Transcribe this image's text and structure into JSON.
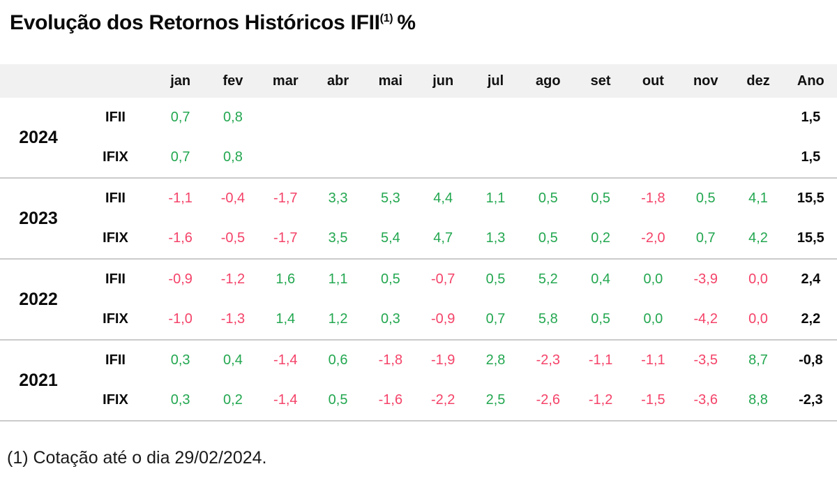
{
  "title": {
    "text": "Evolução dos Retornos Históricos IFII",
    "superscript": "(1)",
    "suffix": "%"
  },
  "footnote": "(1) Cotação até o dia 29/02/2024.",
  "colors": {
    "positive": "#23a750",
    "negative": "#f44369",
    "header_bg": "#f1f1f1",
    "separator": "#cbcbcb",
    "text": "#111111"
  },
  "chart_data": {
    "type": "table",
    "title": "Evolução dos Retornos Históricos IFII(1) %",
    "columns": [
      "jan",
      "fev",
      "mar",
      "abr",
      "mai",
      "jun",
      "jul",
      "ago",
      "set",
      "out",
      "nov",
      "dez",
      "Ano"
    ],
    "year_column_label": "",
    "index_column_label": "",
    "groups": [
      {
        "year": "2024",
        "rows": [
          {
            "index": "IFII",
            "months": [
              "0,7",
              "0,8",
              "",
              "",
              "",
              "",
              "",
              "",
              "",
              "",
              "",
              ""
            ],
            "tones": [
              "g",
              "g",
              "",
              "",
              "",
              "",
              "",
              "",
              "",
              "",
              "",
              ""
            ],
            "total": "1,5"
          },
          {
            "index": "IFIX",
            "months": [
              "0,7",
              "0,8",
              "",
              "",
              "",
              "",
              "",
              "",
              "",
              "",
              "",
              ""
            ],
            "tones": [
              "g",
              "g",
              "",
              "",
              "",
              "",
              "",
              "",
              "",
              "",
              "",
              ""
            ],
            "total": "1,5"
          }
        ]
      },
      {
        "year": "2023",
        "rows": [
          {
            "index": "IFII",
            "months": [
              "-1,1",
              "-0,4",
              "-1,7",
              "3,3",
              "5,3",
              "4,4",
              "1,1",
              "0,5",
              "0,5",
              "-1,8",
              "0,5",
              "4,1"
            ],
            "tones": [
              "r",
              "r",
              "r",
              "g",
              "g",
              "g",
              "g",
              "g",
              "g",
              "r",
              "g",
              "g"
            ],
            "total": "15,5"
          },
          {
            "index": "IFIX",
            "months": [
              "-1,6",
              "-0,5",
              "-1,7",
              "3,5",
              "5,4",
              "4,7",
              "1,3",
              "0,5",
              "0,2",
              "-2,0",
              "0,7",
              "4,2"
            ],
            "tones": [
              "r",
              "r",
              "r",
              "g",
              "g",
              "g",
              "g",
              "g",
              "g",
              "r",
              "g",
              "g"
            ],
            "total": "15,5"
          }
        ]
      },
      {
        "year": "2022",
        "rows": [
          {
            "index": "IFII",
            "months": [
              "-0,9",
              "-1,2",
              "1,6",
              "1,1",
              "0,5",
              "-0,7",
              "0,5",
              "5,2",
              "0,4",
              "0,0",
              "-3,9",
              "0,0"
            ],
            "tones": [
              "r",
              "r",
              "g",
              "g",
              "g",
              "r",
              "g",
              "g",
              "g",
              "g",
              "r",
              "r"
            ],
            "total": "2,4"
          },
          {
            "index": "IFIX",
            "months": [
              "-1,0",
              "-1,3",
              "1,4",
              "1,2",
              "0,3",
              "-0,9",
              "0,7",
              "5,8",
              "0,5",
              "0,0",
              "-4,2",
              "0,0"
            ],
            "tones": [
              "r",
              "r",
              "g",
              "g",
              "g",
              "r",
              "g",
              "g",
              "g",
              "g",
              "r",
              "r"
            ],
            "total": "2,2"
          }
        ]
      },
      {
        "year": "2021",
        "rows": [
          {
            "index": "IFII",
            "months": [
              "0,3",
              "0,4",
              "-1,4",
              "0,6",
              "-1,8",
              "-1,9",
              "2,8",
              "-2,3",
              "-1,1",
              "-1,1",
              "-3,5",
              "8,7"
            ],
            "tones": [
              "g",
              "g",
              "r",
              "g",
              "r",
              "r",
              "g",
              "r",
              "r",
              "r",
              "r",
              "g"
            ],
            "total": "-0,8"
          },
          {
            "index": "IFIX",
            "months": [
              "0,3",
              "0,2",
              "-1,4",
              "0,5",
              "-1,6",
              "-2,2",
              "2,5",
              "-2,6",
              "-1,2",
              "-1,5",
              "-3,6",
              "8,8"
            ],
            "tones": [
              "g",
              "g",
              "r",
              "g",
              "r",
              "r",
              "g",
              "r",
              "r",
              "r",
              "r",
              "g"
            ],
            "total": "-2,3"
          }
        ]
      }
    ]
  }
}
